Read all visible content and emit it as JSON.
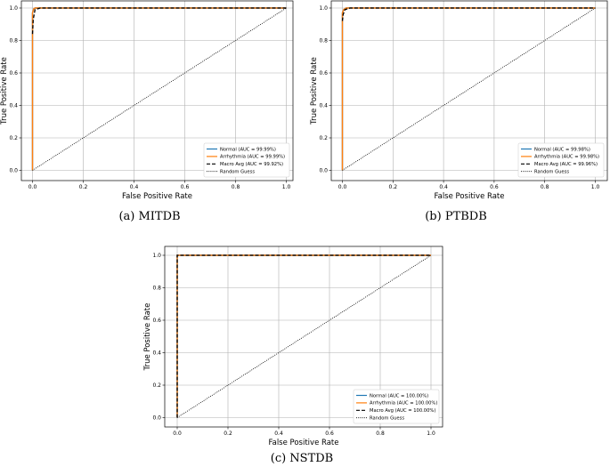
{
  "chart_data": [
    {
      "type": "line",
      "caption": "(a) MITDB",
      "xlabel": "False Positive Rate",
      "ylabel": "True Positive Rate",
      "xlim": [
        0,
        1
      ],
      "ylim": [
        0,
        1
      ],
      "xticks": [
        "0.0",
        "0.2",
        "0.4",
        "0.6",
        "0.8",
        "1.0"
      ],
      "yticks": [
        "0.0",
        "0.2",
        "0.4",
        "0.6",
        "0.8",
        "1.0"
      ],
      "grid": true,
      "legend_position": "lower right",
      "series": [
        {
          "name": "Normal (AUC = 99.99%)",
          "color": "#1f77b4",
          "style": "solid",
          "x": [
            0,
            0,
            0.005,
            0.01,
            1
          ],
          "y": [
            0,
            0.97,
            0.995,
            1.0,
            1.0
          ]
        },
        {
          "name": "Arrhythmia (AUC = 99.99%)",
          "color": "#ff7f0e",
          "style": "solid",
          "x": [
            0,
            0,
            0.005,
            0.01,
            1
          ],
          "y": [
            0,
            0.97,
            0.995,
            1.0,
            1.0
          ]
        },
        {
          "name": "Macro Avg (AUC = 99.92%)",
          "color": "#000000",
          "style": "dashed",
          "x": [
            0,
            0.003,
            0.01,
            0.03,
            1
          ],
          "y": [
            0.84,
            0.93,
            0.99,
            1.0,
            1.0
          ]
        },
        {
          "name": "Random Guess",
          "color": "#000000",
          "style": "dotted",
          "x": [
            0,
            1
          ],
          "y": [
            0,
            1
          ]
        }
      ]
    },
    {
      "type": "line",
      "caption": "(b) PTBDB",
      "xlabel": "False Positive Rate",
      "ylabel": "True Positive Rate",
      "xlim": [
        0,
        1
      ],
      "ylim": [
        0,
        1
      ],
      "xticks": [
        "0.0",
        "0.2",
        "0.4",
        "0.6",
        "0.8",
        "1.0"
      ],
      "yticks": [
        "0.0",
        "0.2",
        "0.4",
        "0.6",
        "0.8",
        "1.0"
      ],
      "grid": true,
      "legend_position": "lower right",
      "series": [
        {
          "name": "Normal (AUC = 99.98%)",
          "color": "#1f77b4",
          "style": "solid",
          "x": [
            0,
            0,
            0.005,
            0.015,
            1
          ],
          "y": [
            0,
            0.97,
            0.99,
            1.0,
            1.0
          ]
        },
        {
          "name": "Arrhythmia (AUC = 99.98%)",
          "color": "#ff7f0e",
          "style": "solid",
          "x": [
            0,
            0,
            0.005,
            0.015,
            1
          ],
          "y": [
            0,
            0.97,
            0.99,
            1.0,
            1.0
          ]
        },
        {
          "name": "Macro Avg (AUC = 99.96%)",
          "color": "#000000",
          "style": "dashed",
          "x": [
            0,
            0.003,
            0.01,
            0.03,
            1
          ],
          "y": [
            0.92,
            0.96,
            0.99,
            1.0,
            1.0
          ]
        },
        {
          "name": "Random Guess",
          "color": "#000000",
          "style": "dotted",
          "x": [
            0,
            1
          ],
          "y": [
            0,
            1
          ]
        }
      ]
    },
    {
      "type": "line",
      "caption": "(c) NSTDB",
      "xlabel": "False Positive Rate",
      "ylabel": "True Positive Rate",
      "xlim": [
        0,
        1
      ],
      "ylim": [
        0,
        1
      ],
      "xticks": [
        "0.0",
        "0.2",
        "0.4",
        "0.6",
        "0.8",
        "1.0"
      ],
      "yticks": [
        "0.0",
        "0.2",
        "0.4",
        "0.6",
        "0.8",
        "1.0"
      ],
      "grid": true,
      "legend_position": "lower right",
      "series": [
        {
          "name": "Normal (AUC = 100.00%)",
          "color": "#1f77b4",
          "style": "solid",
          "x": [
            0,
            0,
            1
          ],
          "y": [
            0,
            1.0,
            1.0
          ]
        },
        {
          "name": "Arrhythmia (AUC = 100.00%)",
          "color": "#ff7f0e",
          "style": "solid",
          "x": [
            0,
            0,
            1
          ],
          "y": [
            0,
            1.0,
            1.0
          ]
        },
        {
          "name": "Macro Avg (AUC = 100.00%)",
          "color": "#000000",
          "style": "dashed",
          "x": [
            0,
            0,
            1
          ],
          "y": [
            0,
            1.0,
            1.0
          ]
        },
        {
          "name": "Random Guess",
          "color": "#000000",
          "style": "dotted",
          "x": [
            0,
            1
          ],
          "y": [
            0,
            1
          ]
        }
      ]
    }
  ]
}
